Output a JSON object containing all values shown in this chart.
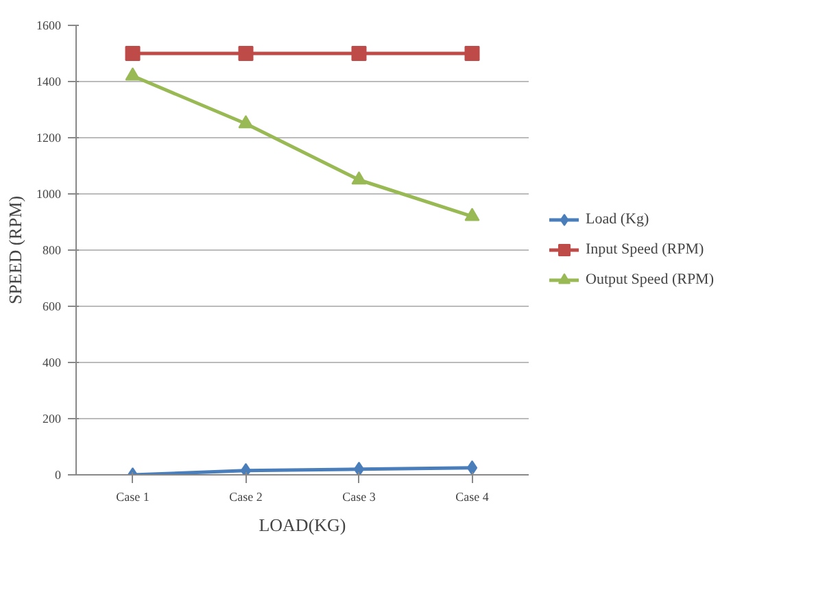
{
  "chart_data": {
    "type": "line",
    "xlabel": "LOAD(KG)",
    "ylabel": "SPEED (RPM)",
    "categories": [
      "Case 1",
      "Case 2",
      "Case 3",
      "Case 4"
    ],
    "series": [
      {
        "name": "Load (Kg)",
        "color": "#4a7ebb",
        "values": [
          0,
          15,
          20,
          25
        ],
        "marker": "diamond"
      },
      {
        "name": "Input Speed (RPM)",
        "color": "#be4b48",
        "values": [
          1500,
          1500,
          1500,
          1500
        ],
        "marker": "square"
      },
      {
        "name": "Output Speed (RPM)",
        "color": "#98b954",
        "values": [
          1420,
          1250,
          1050,
          920
        ],
        "marker": "triangle"
      }
    ],
    "ylim": [
      0,
      1600
    ],
    "yticks": [
      0,
      200,
      400,
      600,
      800,
      1000,
      1200,
      1400,
      1600
    ],
    "grid": "y",
    "legend": "right"
  }
}
